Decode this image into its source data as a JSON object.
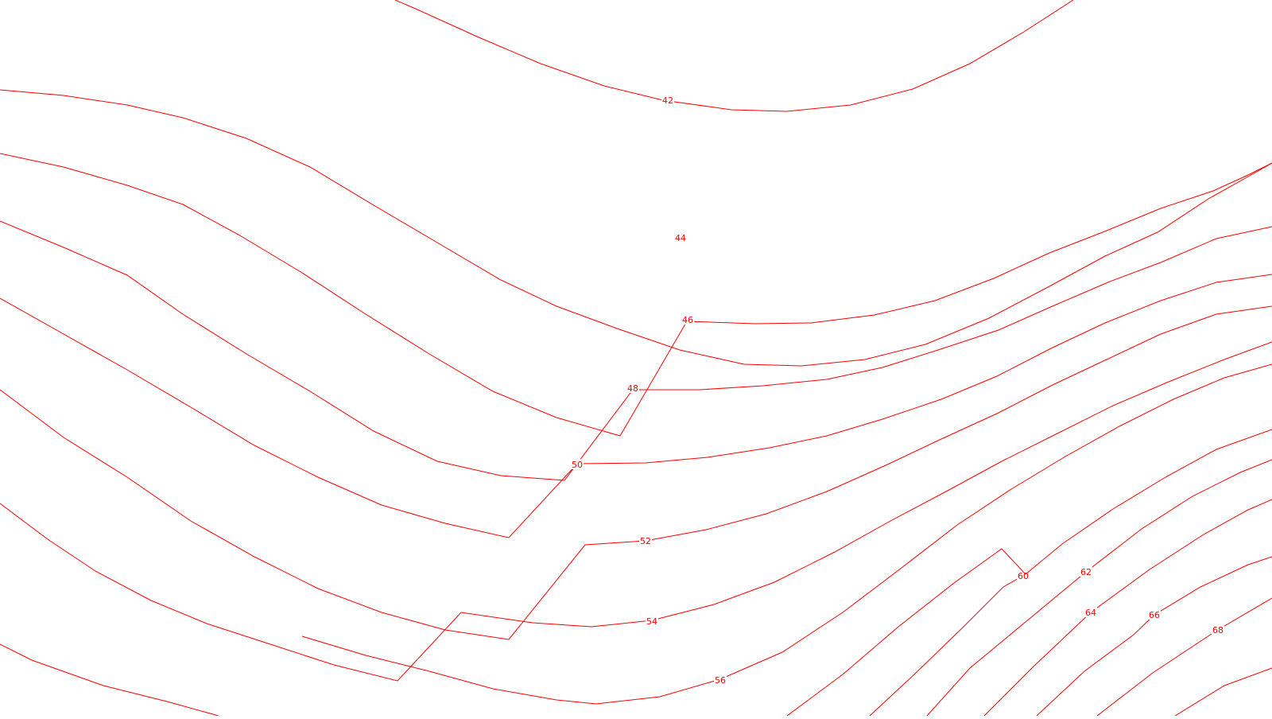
{
  "map": {
    "line_color": "#ff0000",
    "background": "#ffffff",
    "contours": [
      {
        "label": "42"
      },
      {
        "label": "44"
      },
      {
        "label": "46"
      },
      {
        "label": "48"
      },
      {
        "label": "50"
      },
      {
        "label": "52"
      },
      {
        "label": "54"
      },
      {
        "label": "56"
      },
      {
        "label": ""
      },
      {
        "label": "60"
      },
      {
        "label": "62"
      },
      {
        "label": "64"
      },
      {
        "label": "66"
      },
      {
        "label": "68"
      }
    ]
  }
}
